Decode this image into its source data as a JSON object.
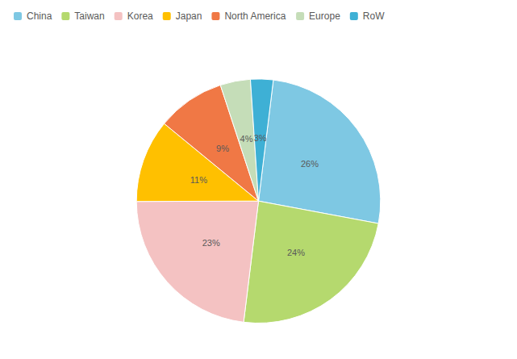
{
  "chart_data": {
    "type": "pie",
    "categories": [
      "China",
      "Taiwan",
      "Korea",
      "Japan",
      "North America",
      "Europe",
      "RoW"
    ],
    "values": [
      26,
      24,
      23,
      11,
      9,
      4,
      3
    ],
    "value_labels": [
      "26%",
      "24%",
      "23%",
      "11%",
      "9%",
      "4%",
      "3%"
    ],
    "colors": [
      "#7EC8E3",
      "#B5D96E",
      "#F4C2C2",
      "#FFC000",
      "#F07845",
      "#C5DDB8",
      "#3EB0D5"
    ],
    "data_labels": true,
    "legend": "upper left"
  }
}
